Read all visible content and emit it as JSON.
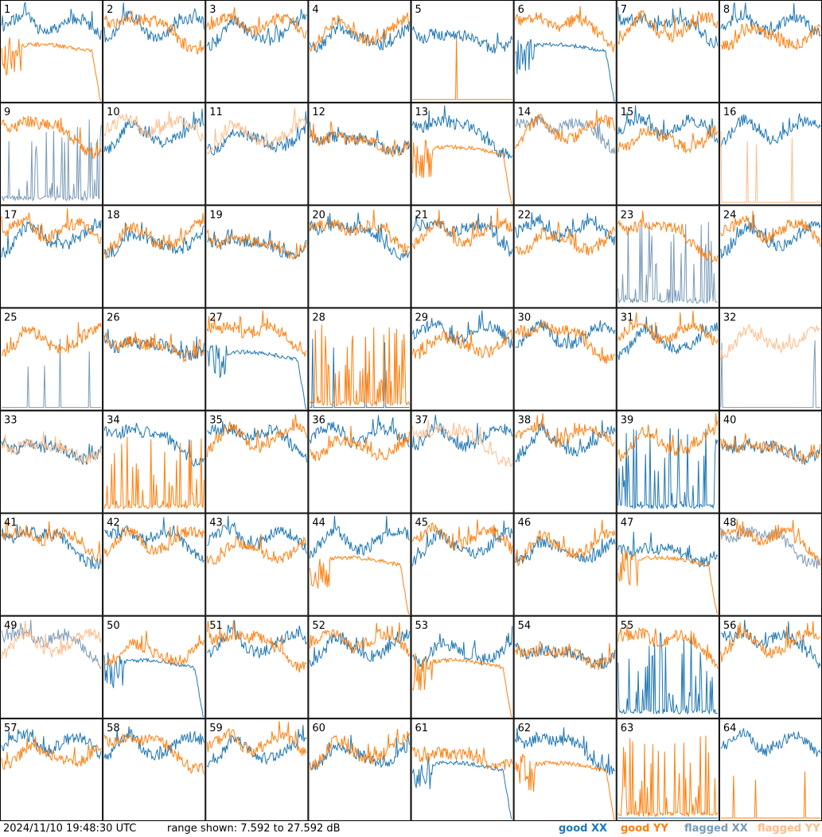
{
  "chart_data": {
    "type": "line",
    "layout": "8x8 small multiples, one panel per antenna tile",
    "panels": [
      {
        "label": "1",
        "xx": "good",
        "yy": "good",
        "shape": "yy_rolloff"
      },
      {
        "label": "2",
        "xx": "good",
        "yy": "good"
      },
      {
        "label": "3",
        "xx": "good",
        "yy": "good"
      },
      {
        "label": "4",
        "xx": "good",
        "yy": "good"
      },
      {
        "label": "5",
        "xx": "good",
        "yy": "good",
        "yy_mode": "dead"
      },
      {
        "label": "6",
        "xx": "good",
        "yy": "good",
        "shape": "xx_rolloff"
      },
      {
        "label": "7",
        "xx": "good",
        "yy": "good"
      },
      {
        "label": "8",
        "xx": "good",
        "yy": "good"
      },
      {
        "label": "9",
        "xx": "flagged",
        "yy": "good",
        "xx_mode": "spiky"
      },
      {
        "label": "10",
        "xx": "good",
        "yy": "flagged"
      },
      {
        "label": "11",
        "xx": "good",
        "yy": "flagged"
      },
      {
        "label": "12",
        "xx": "good",
        "yy": "good"
      },
      {
        "label": "13",
        "xx": "good",
        "yy": "good",
        "shape": "yy_rolloff"
      },
      {
        "label": "14",
        "xx": "flagged",
        "yy": "good"
      },
      {
        "label": "15",
        "xx": "good",
        "yy": "good"
      },
      {
        "label": "16",
        "xx": "good",
        "yy": "flagged",
        "yy_mode": "dead"
      },
      {
        "label": "17",
        "xx": "good",
        "yy": "good"
      },
      {
        "label": "18",
        "xx": "good",
        "yy": "good"
      },
      {
        "label": "19",
        "xx": "good",
        "yy": "good"
      },
      {
        "label": "20",
        "xx": "good",
        "yy": "good"
      },
      {
        "label": "21",
        "xx": "good",
        "yy": "good"
      },
      {
        "label": "22",
        "xx": "good",
        "yy": "good"
      },
      {
        "label": "23",
        "xx": "flagged",
        "yy": "good",
        "xx_mode": "spiky"
      },
      {
        "label": "24",
        "xx": "good",
        "yy": "good"
      },
      {
        "label": "25",
        "xx": "flagged",
        "yy": "good",
        "xx_mode": "dead"
      },
      {
        "label": "26",
        "xx": "good",
        "yy": "good"
      },
      {
        "label": "27",
        "xx": "good",
        "yy": "good",
        "shape": "xx_rolloff"
      },
      {
        "label": "28",
        "xx": "good",
        "yy": "good",
        "xx_mode": "dead",
        "yy_mode": "spiky"
      },
      {
        "label": "29",
        "xx": "good",
        "yy": "good"
      },
      {
        "label": "30",
        "xx": "good",
        "yy": "good"
      },
      {
        "label": "31",
        "xx": "good",
        "yy": "good"
      },
      {
        "label": "32",
        "xx": "flagged",
        "yy": "flagged",
        "xx_mode": "dead"
      },
      {
        "label": "33",
        "xx": "good",
        "yy": "flagged"
      },
      {
        "label": "34",
        "xx": "good",
        "yy": "good",
        "yy_mode": "spiky"
      },
      {
        "label": "35",
        "xx": "good",
        "yy": "good"
      },
      {
        "label": "36",
        "xx": "good",
        "yy": "good"
      },
      {
        "label": "37",
        "xx": "good",
        "yy": "flagged"
      },
      {
        "label": "38",
        "xx": "good",
        "yy": "good"
      },
      {
        "label": "39",
        "xx": "good",
        "yy": "good",
        "xx_mode": "spiky"
      },
      {
        "label": "40",
        "xx": "good",
        "yy": "good"
      },
      {
        "label": "41",
        "xx": "good",
        "yy": "good"
      },
      {
        "label": "42",
        "xx": "good",
        "yy": "good"
      },
      {
        "label": "43",
        "xx": "good",
        "yy": "good"
      },
      {
        "label": "44",
        "xx": "good",
        "yy": "good",
        "shape": "yy_rolloff"
      },
      {
        "label": "45",
        "xx": "good",
        "yy": "good"
      },
      {
        "label": "46",
        "xx": "good",
        "yy": "good"
      },
      {
        "label": "47",
        "xx": "good",
        "yy": "good",
        "shape": "yy_rolloff"
      },
      {
        "label": "48",
        "xx": "flagged",
        "yy": "good"
      },
      {
        "label": "49",
        "xx": "flagged",
        "yy": "flagged"
      },
      {
        "label": "50",
        "xx": "good",
        "yy": "good",
        "shape": "xx_rolloff"
      },
      {
        "label": "51",
        "xx": "good",
        "yy": "good"
      },
      {
        "label": "52",
        "xx": "good",
        "yy": "good"
      },
      {
        "label": "53",
        "xx": "good",
        "yy": "good",
        "shape": "yy_rolloff"
      },
      {
        "label": "54",
        "xx": "good",
        "yy": "good"
      },
      {
        "label": "55",
        "xx": "good",
        "yy": "good",
        "xx_mode": "spiky"
      },
      {
        "label": "56",
        "xx": "good",
        "yy": "good"
      },
      {
        "label": "57",
        "xx": "good",
        "yy": "good"
      },
      {
        "label": "58",
        "xx": "good",
        "yy": "good"
      },
      {
        "label": "59",
        "xx": "good",
        "yy": "good"
      },
      {
        "label": "60",
        "xx": "good",
        "yy": "good"
      },
      {
        "label": "61",
        "xx": "good",
        "yy": "good",
        "shape": "xx_rolloff"
      },
      {
        "label": "62",
        "xx": "good",
        "yy": "good",
        "shape": "yy_rolloff"
      },
      {
        "label": "63",
        "xx": "good",
        "yy": "good",
        "xx_mode": "dead",
        "yy_mode": "spiky"
      },
      {
        "label": "64",
        "xx": "good",
        "yy": "good",
        "yy_mode": "dead"
      }
    ],
    "ylim_db": [
      7.592,
      27.592
    ],
    "legend": [
      {
        "label": "good XX",
        "color": "#1f77b4"
      },
      {
        "label": "good YY",
        "color": "#ff7f0e"
      },
      {
        "label": "flagged XX",
        "color": "#7a9ab8"
      },
      {
        "label": "flagged YY",
        "color": "#ffbb88"
      }
    ]
  },
  "footer": {
    "timestamp": "2024/11/10 19:48:30 UTC",
    "range_text": "range shown: 7.592 to 27.592 dB"
  }
}
